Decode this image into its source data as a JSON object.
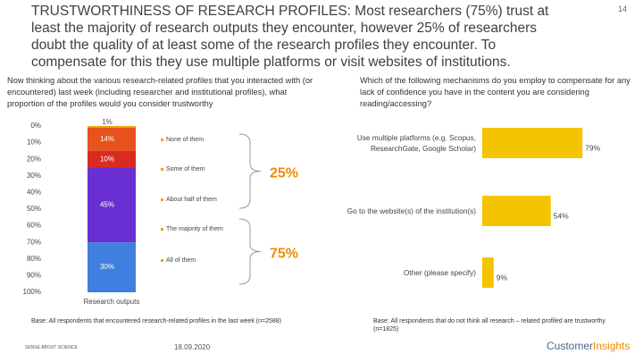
{
  "header": {
    "title": "TRUSTWORTHINESS OF RESEARCH PROFILES:",
    "headline": "Most researchers (75%) trust at least the majority of research outputs they encounter,  however 25% of researchers doubt the quality of at least  some of the research profiles they encounter. To compensate for this they use multiple platforms or visit websites of institutions.",
    "page_number": "14"
  },
  "chart_data": [
    {
      "type": "stacked_bar",
      "subtitle": "Now thinking about the various research-related profiles that you interacted with (or encountered) last week (including researcher and institutional profiles), what proportion of the profiles would you consider trustworthy",
      "categories": [
        "Research outputs"
      ],
      "series": [
        {
          "name": "None of them",
          "color": "#f2a007",
          "values": [
            1
          ],
          "value_labels": [
            "1%"
          ]
        },
        {
          "name": "Some of them",
          "color": "#e8521c",
          "values": [
            14
          ],
          "value_labels": [
            "14%"
          ]
        },
        {
          "name": "About half of them",
          "color": "#d92b20",
          "values": [
            10
          ],
          "value_labels": [
            "10%"
          ]
        },
        {
          "name": "The majority of them",
          "color": "#6a2fd3",
          "values": [
            45
          ],
          "value_labels": [
            "45%"
          ]
        },
        {
          "name": "All of them",
          "color": "#3f7fe0",
          "values": [
            30
          ],
          "value_labels": [
            "30%"
          ]
        }
      ],
      "ylim": [
        0,
        100
      ],
      "inverted": true,
      "yticks": [
        {
          "value": 0,
          "label": "0%"
        },
        {
          "value": 10,
          "label": "10%"
        },
        {
          "value": 20,
          "label": "20%"
        },
        {
          "value": 30,
          "label": "30%"
        },
        {
          "value": 40,
          "label": "40%"
        },
        {
          "value": 50,
          "label": "50%"
        },
        {
          "value": 60,
          "label": "60%"
        },
        {
          "value": 70,
          "label": "70%"
        },
        {
          "value": 80,
          "label": "80%"
        },
        {
          "value": 90,
          "label": "90%"
        },
        {
          "value": 100,
          "label": "100%"
        }
      ],
      "annotations": [
        "25%",
        "75%"
      ],
      "base_note": "Base: All respondents that encountered research-related profiles in the last week (n=2588)"
    },
    {
      "type": "hbar",
      "subtitle": "Which of the following mechanisms do you employ to compensate for any lack of confidence you have in the content you are considering reading/accessing?",
      "categories": [
        "Use multiple platforms (e.g. Scopus, ResearchGate, Google Scholar)",
        "Go to the website(s) of the institution(s)",
        "Other (please specify)"
      ],
      "values": [
        79,
        54,
        9
      ],
      "value_labels": [
        "79%",
        "54%",
        "9%"
      ],
      "color": "#f5c400",
      "xlim": [
        0,
        100
      ],
      "base_note": "Base: All respondents that do not think all research – related profiled are trustworthy (n=1825)"
    }
  ],
  "footer": {
    "date": "18.09.2020",
    "logos": [
      "SENSE ABOUT SCIENCE",
      "Customer",
      "Insights"
    ]
  }
}
